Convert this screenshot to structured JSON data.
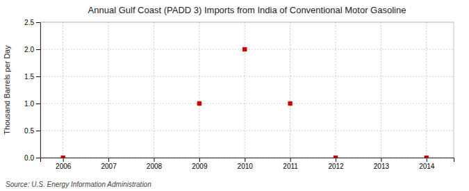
{
  "chart_data": {
    "type": "scatter",
    "title": "Annual Gulf Coast (PADD 3) Imports from India of Conventional Motor Gasoline",
    "y_label": "Thousand Barrels per Day",
    "annotations": [
      "Source: U.S. Energy Information Administration"
    ],
    "x": [
      2006,
      2009,
      2010,
      2011,
      2012,
      2014
    ],
    "values": [
      0.0,
      1.0,
      2.0,
      1.0,
      0.0,
      0.0
    ],
    "color": "#CC0000",
    "marker": "square",
    "xlim": [
      2005.5,
      2014.6
    ],
    "xticks": [
      2006,
      2007,
      2008,
      2009,
      2010,
      2011,
      2012,
      2013,
      2014
    ],
    "ylim": [
      0.0,
      2.5
    ],
    "yticks": [
      {
        "value": 0.0,
        "label": "0.0"
      },
      0.5,
      {
        "value": 1.0,
        "label": "1.0"
      },
      1.5,
      {
        "value": 2.0,
        "label": "2.0"
      },
      2.5
    ],
    "grid": true
  }
}
